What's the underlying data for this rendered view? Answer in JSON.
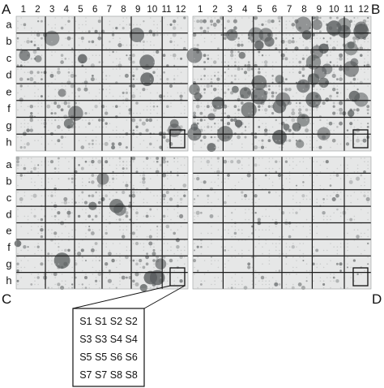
{
  "panel_letters": [
    "A",
    "B",
    "C",
    "D"
  ],
  "column_labels": [
    "1",
    "2",
    "3",
    "4",
    "5",
    "6",
    "7",
    "8",
    "9",
    "10",
    "11",
    "12"
  ],
  "row_labels": [
    "a",
    "b",
    "c",
    "d",
    "e",
    "f",
    "g",
    "h"
  ],
  "key_rows": [
    [
      "S1",
      "S1",
      "S2",
      "S2"
    ],
    [
      "S3",
      "S3",
      "S4",
      "S4"
    ],
    [
      "S5",
      "S5",
      "S6",
      "S6"
    ],
    [
      "S7",
      "S7",
      "S8",
      "S8"
    ]
  ],
  "colors": {
    "membrane": "#e6e7e7",
    "grid_line": "#1a1a1a",
    "spot": "#5a5e5f"
  }
}
